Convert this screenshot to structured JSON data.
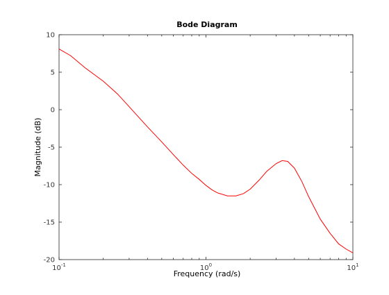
{
  "chart_data": {
    "type": "line",
    "title": "Bode Diagram",
    "xlabel": "Frequency  (rad/s)",
    "ylabel": "Magnitude (dB)",
    "x_scale": "log",
    "xlim": [
      0.1,
      10
    ],
    "ylim": [
      -20,
      10
    ],
    "x_ticks": [
      {
        "value": 0.1,
        "base": "10",
        "exp": "-1"
      },
      {
        "value": 1,
        "base": "10",
        "exp": "0"
      },
      {
        "value": 10,
        "base": "10",
        "exp": "1"
      }
    ],
    "y_ticks": [
      10,
      5,
      0,
      -5,
      -10,
      -15,
      -20
    ],
    "grid": false,
    "line_color": "#ff0000",
    "series": [
      {
        "x": [
          0.1,
          0.12,
          0.15,
          0.2,
          0.25,
          0.3,
          0.4,
          0.5,
          0.6,
          0.7,
          0.8,
          0.9,
          1.0,
          1.1,
          1.2,
          1.4,
          1.6,
          1.8,
          2.0,
          2.3,
          2.6,
          3.0,
          3.3,
          3.6,
          4.0,
          4.5,
          5.0,
          6.0,
          7.0,
          8.0,
          9.0,
          10.0
        ],
        "y": [
          8.1,
          7.2,
          5.6,
          3.8,
          2.1,
          0.4,
          -2.3,
          -4.3,
          -6.0,
          -7.4,
          -8.5,
          -9.3,
          -10.1,
          -10.7,
          -11.1,
          -11.5,
          -11.5,
          -11.2,
          -10.6,
          -9.4,
          -8.2,
          -7.2,
          -6.8,
          -6.9,
          -7.8,
          -9.6,
          -11.6,
          -14.6,
          -16.5,
          -17.9,
          -18.6,
          -19.1
        ]
      }
    ]
  }
}
